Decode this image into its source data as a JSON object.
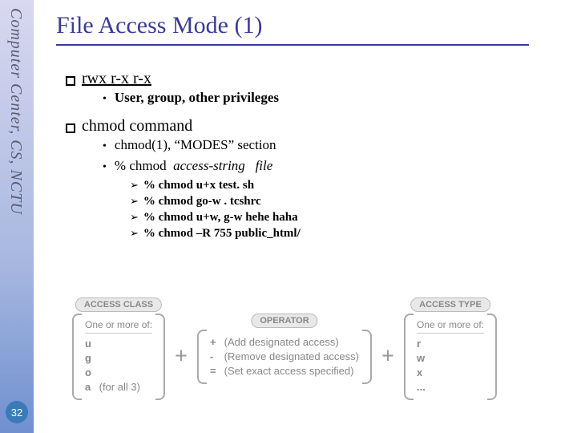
{
  "sidebar": {
    "text": "Computer Center, CS, NCTU",
    "page_number": "32"
  },
  "title": "File Access Mode (1)",
  "bullets": [
    {
      "text": "rwx r-x r-x",
      "underline": true,
      "subs": [
        {
          "text": "User, group, other privileges",
          "bold": true
        }
      ]
    },
    {
      "text": "chmod command",
      "underline": false,
      "subs": [
        {
          "text_html": "chmod(1), <span class='quotes'>“</span>MODES<span class='quotes'>”</span> section"
        },
        {
          "text_html": "% chmod &nbsp;<span class='italic'>access-string</span> &nbsp;&nbsp;<span class='italic'>file</span>",
          "sub2": [
            "% chmod u+x test. sh",
            "% chmod go-w . tcshrc",
            "% chmod u+w, g-w hehe haha",
            "% chmod –R 755 public_html/"
          ]
        }
      ]
    }
  ],
  "diagram": {
    "plus": "+",
    "boxes": [
      {
        "label": "ACCESS CLASS",
        "header": "One or more of:",
        "rows": [
          {
            "sym": "u",
            "desc": ""
          },
          {
            "sym": "g",
            "desc": ""
          },
          {
            "sym": "o",
            "desc": ""
          },
          {
            "sym": "a",
            "desc": "(for all 3)"
          }
        ]
      },
      {
        "label": "OPERATOR",
        "header": "",
        "rows": [
          {
            "sym": "+",
            "desc": "(Add designated access)"
          },
          {
            "sym": "-",
            "desc": "(Remove designated access)"
          },
          {
            "sym": "=",
            "desc": "(Set exact access specified)"
          }
        ]
      },
      {
        "label": "ACCESS TYPE",
        "header": "One or more of:",
        "rows": [
          {
            "sym": "r",
            "desc": ""
          },
          {
            "sym": "w",
            "desc": ""
          },
          {
            "sym": "x",
            "desc": ""
          },
          {
            "sym": "...",
            "desc": ""
          }
        ]
      }
    ]
  },
  "colors": {
    "title": "#3a3a9a",
    "sidebar_text": "#5a5a70",
    "pagenum_bg": "#3a7ab8"
  }
}
